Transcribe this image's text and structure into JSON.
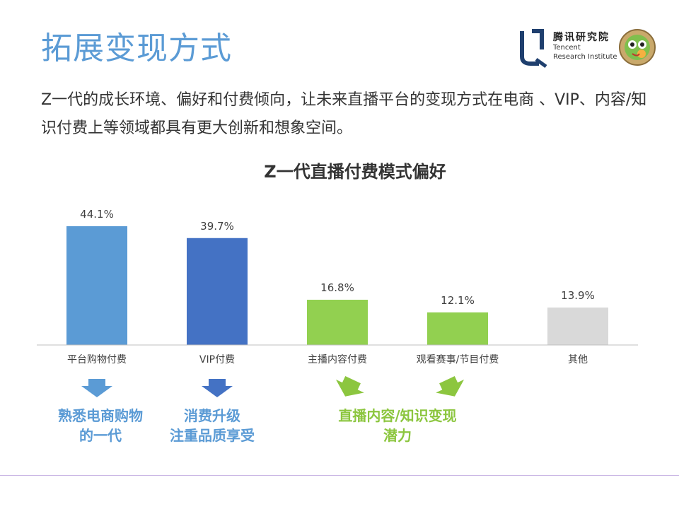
{
  "header": {
    "title": "拓展变现方式",
    "logo_cn": "腾讯研究院",
    "logo_en_line1": "Tencent",
    "logo_en_line2": "Research Institute"
  },
  "intro_text": "Z一代的成长环境、偏好和付费倾向，让未来直播平台的变现方式在电商 、VIP、内容/知识付费上等领域都具有更大创新和想象空间。",
  "chart_data": {
    "type": "bar",
    "title": "Z一代直播付费模式偏好",
    "categories": [
      "平台购物付费",
      "VIP付费",
      "主播内容付费",
      "观看赛事/节目付费",
      "其他"
    ],
    "values": [
      44.1,
      39.7,
      16.8,
      12.1,
      13.9
    ],
    "value_labels": [
      "44.1%",
      "39.7%",
      "16.8%",
      "12.1%",
      "13.9%"
    ],
    "colors": [
      "#5b9bd5",
      "#4472c4",
      "#92d050",
      "#92d050",
      "#d9d9d9"
    ],
    "ylim": [
      0,
      50
    ],
    "xlabel": "",
    "ylabel": "",
    "grid": false
  },
  "callouts": [
    {
      "line1": "熟悉电商购物",
      "line2": "的一代"
    },
    {
      "line1": "消费升级",
      "line2": "注重品质享受"
    },
    {
      "line1": "直播内容/知识变现",
      "line2": "潜力"
    }
  ],
  "colors": {
    "title_blue": "#5b9bd5",
    "arrow_blue_light": "#5b9bd5",
    "arrow_blue_dark": "#4472c4",
    "arrow_green": "#8cc63f",
    "callout_green": "#8cc63f"
  }
}
